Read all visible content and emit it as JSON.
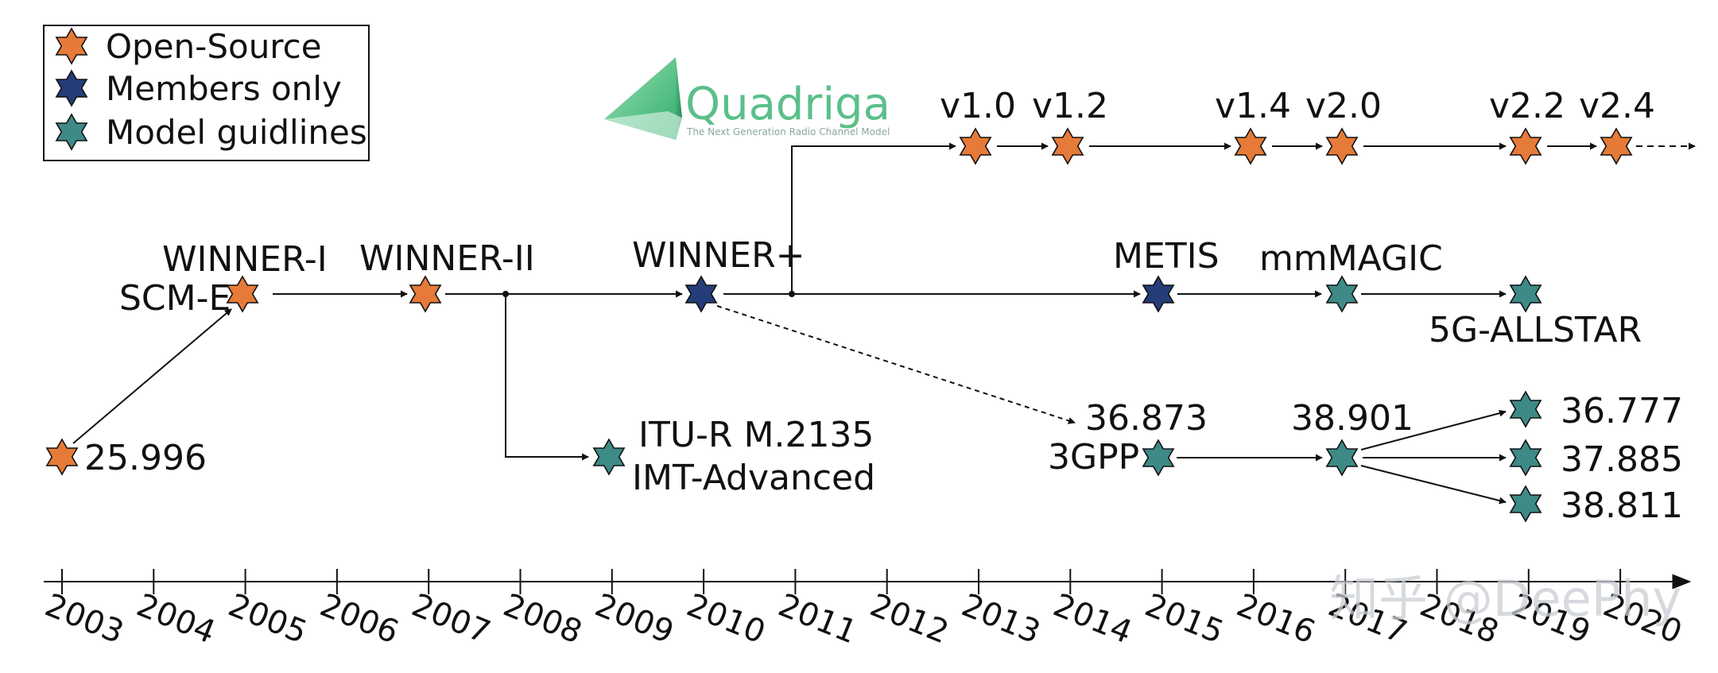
{
  "colors": {
    "open_source": "#e67a38",
    "members_only": "#243d78",
    "model_guidelines": "#3d8a86",
    "line": "#111111"
  },
  "legend": {
    "position": "top-left",
    "items": [
      {
        "label": "Open-Source",
        "category": "open_source"
      },
      {
        "label": "Members only",
        "category": "members_only"
      },
      {
        "label": "Model guidlines",
        "category": "model_guidelines"
      }
    ]
  },
  "logo": {
    "icon": "quadriga-pyramid-icon",
    "name": "Quadriga",
    "tagline": "The Next Generation Radio Channel Model"
  },
  "timeline": {
    "years": [
      "2003",
      "2004",
      "2005",
      "2006",
      "2007",
      "2008",
      "2009",
      "2010",
      "2011",
      "2012",
      "2013",
      "2014",
      "2015",
      "2016",
      "2017",
      "2018",
      "2019",
      "2020"
    ]
  },
  "nodes": {
    "n25996": {
      "category": "open_source"
    },
    "winner1": {
      "category": "open_source"
    },
    "winner2": {
      "category": "open_source"
    },
    "winnerp": {
      "category": "members_only"
    },
    "itur": {
      "category": "model_guidelines"
    },
    "metis": {
      "category": "members_only"
    },
    "mmmagic": {
      "category": "model_guidelines"
    },
    "allstar": {
      "category": "model_guidelines"
    },
    "gpp": {
      "category": "model_guidelines"
    },
    "g38901": {
      "category": "model_guidelines"
    },
    "g36777": {
      "category": "model_guidelines"
    },
    "g37885": {
      "category": "model_guidelines"
    },
    "g38811": {
      "category": "model_guidelines"
    },
    "v10": {
      "category": "open_source"
    },
    "v12": {
      "category": "open_source"
    },
    "v14": {
      "category": "open_source"
    },
    "v20": {
      "category": "open_source"
    },
    "v22": {
      "category": "open_source"
    },
    "v24": {
      "category": "open_source"
    }
  },
  "labels": {
    "n25996": "25.996",
    "winner1": "WINNER-I",
    "scme": "SCM-E",
    "winner2": "WINNER-II",
    "winnerp": "WINNER+",
    "itur_1": "ITU-R M.2135",
    "itur_2": "IMT-Advanced",
    "metis": "METIS",
    "mmmagic": "mmMAGIC",
    "allstar": "5G-ALLSTAR",
    "g36873": "36.873",
    "gpp": "3GPP",
    "g38901": "38.901",
    "g36777": "36.777",
    "g37885": "37.885",
    "g38811": "38.811",
    "v10": "v1.0",
    "v12": "v1.2",
    "v14": "v1.4",
    "v20": "v2.0",
    "v22": "v2.2",
    "v24": "v2.4"
  },
  "watermark": "知乎 @DeePhy"
}
